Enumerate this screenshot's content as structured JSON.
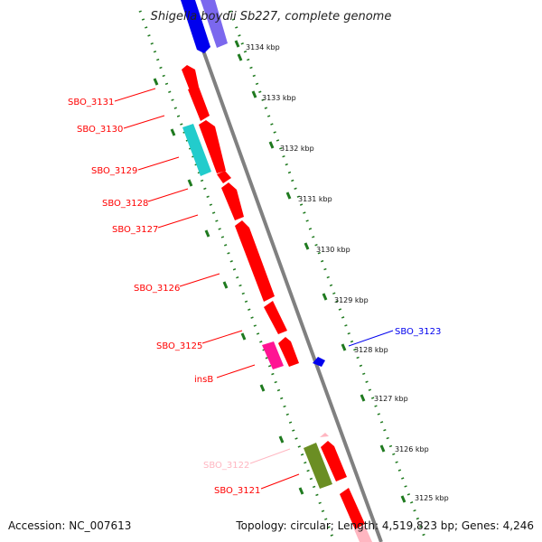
{
  "title": "Shigella boydii Sb227, complete genome",
  "colors": {
    "backbone": "#808080",
    "tick": "#1f7a1f",
    "gene_red": "#ff0000",
    "gene_cyan": "#22cccc",
    "gene_magenta": "#ff1493",
    "gene_olive": "#6b8e23",
    "gene_blue": "#0000ee",
    "gene_lavender": "#7b68ee",
    "gene_pink": "#ffb6c1"
  },
  "ticks": [
    "3134 kbp",
    "3133 kbp",
    "3132 kbp",
    "3131 kbp",
    "3130 kbp",
    "3129 kbp",
    "3128 kbp",
    "3127 kbp",
    "3126 kbp",
    "3125 kbp"
  ],
  "gene_labels": [
    {
      "text": "SBO_3131",
      "color": "#ff0000"
    },
    {
      "text": "SBO_3130",
      "color": "#ff0000"
    },
    {
      "text": "SBO_3129",
      "color": "#ff0000"
    },
    {
      "text": "SBO_3128",
      "color": "#ff0000"
    },
    {
      "text": "SBO_3127",
      "color": "#ff0000"
    },
    {
      "text": "SBO_3126",
      "color": "#ff0000"
    },
    {
      "text": "SBO_3125",
      "color": "#ff0000"
    },
    {
      "text": "insB",
      "color": "#ff0000"
    },
    {
      "text": "SBO_3122",
      "color": "#ffb6c1"
    },
    {
      "text": "SBO_3121",
      "color": "#ff0000"
    },
    {
      "text": "SBO_3123",
      "color": "#0000ee"
    }
  ],
  "footer": {
    "accession": "Accession: NC_007613",
    "summary": "Topology: circular; Length: 4,519,823 bp; Genes: 4,246"
  }
}
